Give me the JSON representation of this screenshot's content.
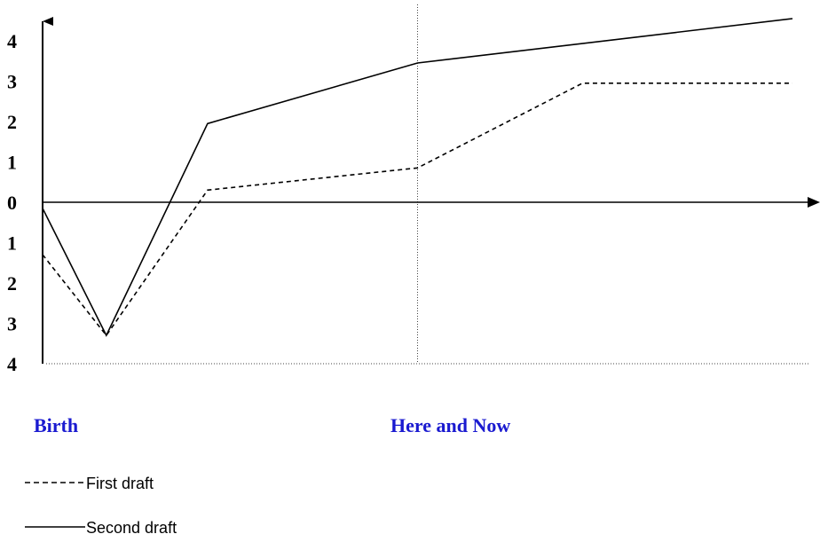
{
  "chart_data": {
    "type": "line",
    "x_labels": [
      {
        "x": 0,
        "label": "Birth"
      },
      {
        "x": 5,
        "label": "Here and Now"
      }
    ],
    "y_tick_labels": [
      "4",
      "3",
      "2",
      "1",
      "0",
      "1",
      "2",
      "3",
      "4"
    ],
    "y_tick_values": [
      4,
      3,
      2,
      1,
      0,
      -1,
      -2,
      -3,
      -4
    ],
    "ylim": [
      -4,
      4
    ],
    "xlim": [
      0,
      10.5
    ],
    "series": [
      {
        "name": "First draft",
        "style": "dashed",
        "color": "#000000",
        "points": [
          [
            0,
            -1.3
          ],
          [
            0.85,
            -3.3
          ],
          [
            2.2,
            0.3
          ],
          [
            5,
            0.85
          ],
          [
            7.2,
            2.95
          ],
          [
            10,
            2.95
          ]
        ]
      },
      {
        "name": "Second draft",
        "style": "solid",
        "color": "#000000",
        "points": [
          [
            0,
            -0.15
          ],
          [
            0.85,
            -3.3
          ],
          [
            2.2,
            1.95
          ],
          [
            5,
            3.45
          ],
          [
            10,
            4.55
          ]
        ]
      }
    ],
    "grid": false,
    "legend": "bottom-left"
  }
}
